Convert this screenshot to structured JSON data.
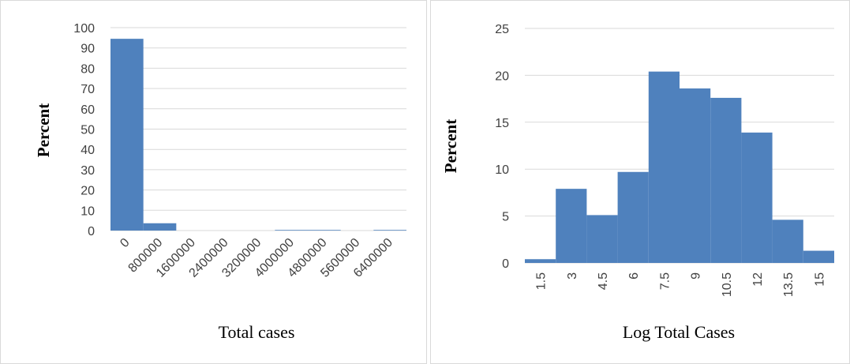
{
  "chart_data": [
    {
      "type": "bar",
      "x_label": "Total cases",
      "y_label": "Percent",
      "categories": [
        "0",
        "800000",
        "1600000",
        "2400000",
        "3200000",
        "4000000",
        "4800000",
        "5600000",
        "6400000"
      ],
      "values": [
        94.5,
        3.6,
        0,
        0,
        0,
        0.3,
        0.3,
        0,
        0.3
      ],
      "color": "#4f81bd",
      "ylim": [
        0,
        100
      ],
      "yticks": [
        0,
        10,
        20,
        30,
        40,
        50,
        60,
        70,
        80,
        90,
        100
      ],
      "grid": true
    },
    {
      "type": "bar",
      "x_label": "Log Total Cases",
      "y_label": "Percent",
      "categories": [
        "1.5",
        "3",
        "4.5",
        "6",
        "7.5",
        "9",
        "10.5",
        "12",
        "13.5",
        "15"
      ],
      "values": [
        0.4,
        7.9,
        5.1,
        9.7,
        20.4,
        18.6,
        17.6,
        13.9,
        4.6,
        1.3
      ],
      "color": "#4f81bd",
      "ylim": [
        0,
        25
      ],
      "yticks": [
        0,
        5,
        10,
        15,
        20,
        25
      ],
      "grid": true
    }
  ]
}
